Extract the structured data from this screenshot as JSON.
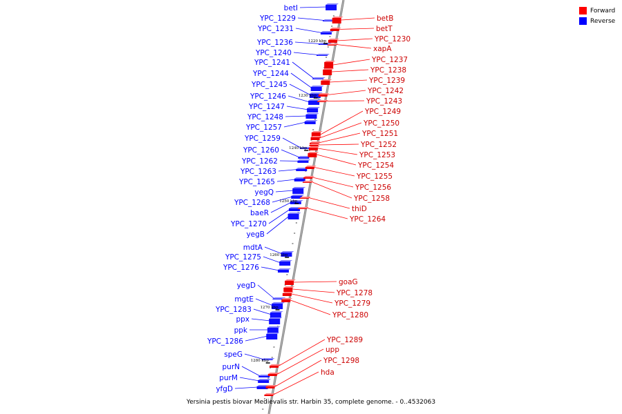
{
  "legend": {
    "forward": {
      "label": "Forward",
      "color": "#ff0000"
    },
    "reverse": {
      "label": "Reverse",
      "color": "#0000ff"
    }
  },
  "footer": {
    "text": "Yersinia pestis biovar Medievalis str. Harbin 35, complete genome. - 0..4532063"
  },
  "scale_marks": [
    "1220 kbp",
    "1230 kbp",
    "1240 kbp",
    "1250 kbp",
    "1260 kbp",
    "1270 kbp",
    "1280 kbp"
  ],
  "reverse_genes": [
    "betI",
    "YPC_1229",
    "YPC_1231",
    "YPC_1236",
    "YPC_1240",
    "YPC_1241",
    "YPC_1244",
    "YPC_1245",
    "YPC_1246",
    "YPC_1247",
    "YPC_1248",
    "YPC_1257",
    "YPC_1259",
    "YPC_1260",
    "YPC_1262",
    "YPC_1263",
    "YPC_1265",
    "yegQ",
    "YPC_1268",
    "baeR",
    "YPC_1270",
    "yegB",
    "mdtA",
    "YPC_1275",
    "YPC_1276",
    "yegD",
    "mgtE",
    "YPC_1283",
    "ppx",
    "ppk",
    "YPC_1286",
    "speG",
    "purN",
    "purM",
    "yfgD"
  ],
  "forward_genes": [
    "betB",
    "betT",
    "YPC_1230",
    "xapA",
    "YPC_1237",
    "YPC_1238",
    "YPC_1239",
    "YPC_1242",
    "YPC_1243",
    "YPC_1249",
    "YPC_1250",
    "YPC_1251",
    "YPC_1252",
    "YPC_1253",
    "YPC_1254",
    "YPC_1255",
    "YPC_1256",
    "YPC_1258",
    "thiD",
    "YPC_1264",
    "goaG",
    "YPC_1278",
    "YPC_1279",
    "YPC_1280",
    "YPC_1289",
    "upp",
    "YPC_1298",
    "hda"
  ]
}
